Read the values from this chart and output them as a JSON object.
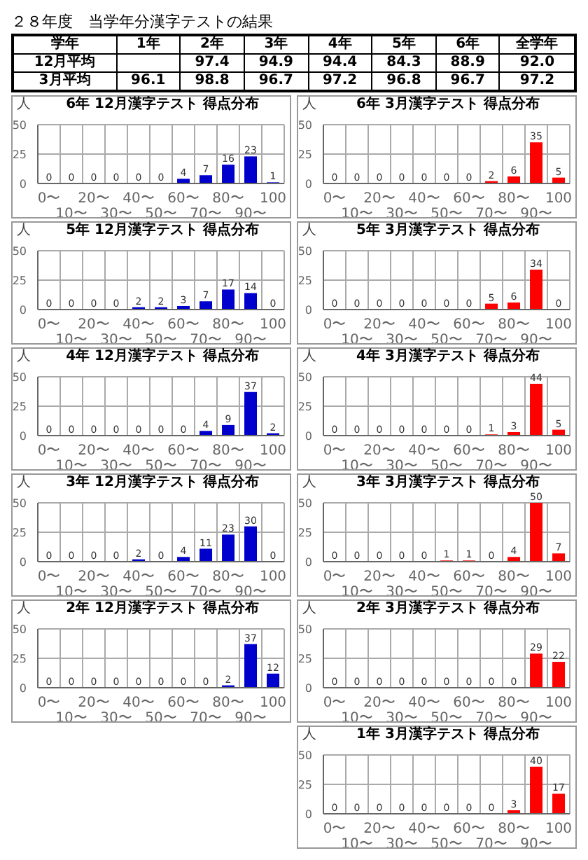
{
  "chart_data": [
    {
      "type": "heatmap",
      "title": "２８年度　当学年分漢字テストの結果",
      "xlabel": "学年",
      "categories": [
        "1年",
        "2年",
        "3年",
        "4年",
        "5年",
        "6年",
        "全学年"
      ],
      "y_categories": [
        "12月平均",
        "3月平均"
      ],
      "cells": [
        [
          null,
          97.4,
          94.9,
          94.4,
          84.3,
          88.9,
          92.0
        ],
        [
          96.1,
          98.8,
          96.7,
          97.2,
          96.8,
          96.7,
          97.2
        ]
      ],
      "cell_labels": [
        [
          null,
          "97.4",
          "94.9",
          "94.4",
          "84.3",
          "88.9",
          "92.0"
        ],
        [
          "96.1",
          "98.8",
          "96.7",
          "97.2",
          "96.8",
          "96.7",
          "97.2"
        ]
      ]
    },
    {
      "type": "bar",
      "title": "6年 12月漢字テスト 得点分布",
      "ylabel": "人",
      "categories": [
        "0〜",
        "10〜",
        "20〜",
        "30〜",
        "40〜",
        "50〜",
        "60〜",
        "70〜",
        "80〜",
        "90〜",
        "100"
      ],
      "values": [
        0,
        0,
        0,
        0,
        0,
        0,
        4,
        7,
        16,
        23,
        1
      ],
      "color": "#0000cc",
      "ylim": [
        0,
        50
      ],
      "yticks": [
        0,
        25,
        50
      ],
      "grid": true,
      "data_labels": true
    },
    {
      "type": "bar",
      "title": "5年 12月漢字テスト 得点分布",
      "ylabel": "人",
      "categories": [
        "0〜",
        "10〜",
        "20〜",
        "30〜",
        "40〜",
        "50〜",
        "60〜",
        "70〜",
        "80〜",
        "90〜",
        "100"
      ],
      "values": [
        0,
        0,
        0,
        0,
        2,
        2,
        3,
        7,
        17,
        14,
        0
      ],
      "color": "#0000cc",
      "ylim": [
        0,
        50
      ],
      "yticks": [
        0,
        25,
        50
      ],
      "grid": true,
      "data_labels": true
    },
    {
      "type": "bar",
      "title": "4年 12月漢字テスト 得点分布",
      "ylabel": "人",
      "categories": [
        "0〜",
        "10〜",
        "20〜",
        "30〜",
        "40〜",
        "50〜",
        "60〜",
        "70〜",
        "80〜",
        "90〜",
        "100"
      ],
      "values": [
        0,
        0,
        0,
        0,
        0,
        0,
        0,
        4,
        9,
        37,
        2
      ],
      "color": "#0000cc",
      "ylim": [
        0,
        50
      ],
      "yticks": [
        0,
        25,
        50
      ],
      "grid": true,
      "data_labels": true
    },
    {
      "type": "bar",
      "title": "3年 12月漢字テスト 得点分布",
      "ylabel": "人",
      "categories": [
        "0〜",
        "10〜",
        "20〜",
        "30〜",
        "40〜",
        "50〜",
        "60〜",
        "70〜",
        "80〜",
        "90〜",
        "100"
      ],
      "values": [
        0,
        0,
        0,
        0,
        2,
        0,
        4,
        11,
        23,
        30,
        0
      ],
      "color": "#0000cc",
      "ylim": [
        0,
        50
      ],
      "yticks": [
        0,
        25,
        50
      ],
      "grid": true,
      "data_labels": true
    },
    {
      "type": "bar",
      "title": "2年 12月漢字テスト 得点分布",
      "ylabel": "人",
      "categories": [
        "0〜",
        "10〜",
        "20〜",
        "30〜",
        "40〜",
        "50〜",
        "60〜",
        "70〜",
        "80〜",
        "90〜",
        "100"
      ],
      "values": [
        0,
        0,
        0,
        0,
        0,
        0,
        0,
        0,
        2,
        37,
        12
      ],
      "color": "#0000cc",
      "ylim": [
        0,
        50
      ],
      "yticks": [
        0,
        25,
        50
      ],
      "grid": true,
      "data_labels": true
    },
    {
      "type": "bar",
      "title": "6年 3月漢字テスト 得点分布",
      "ylabel": "人",
      "categories": [
        "0〜",
        "10〜",
        "20〜",
        "30〜",
        "40〜",
        "50〜",
        "60〜",
        "70〜",
        "80〜",
        "90〜",
        "100"
      ],
      "values": [
        0,
        0,
        0,
        0,
        0,
        0,
        0,
        2,
        6,
        35,
        5
      ],
      "color": "#ff0000",
      "ylim": [
        0,
        50
      ],
      "yticks": [
        0,
        25,
        50
      ],
      "grid": true,
      "data_labels": true
    },
    {
      "type": "bar",
      "title": "5年 3月漢字テスト 得点分布",
      "ylabel": "人",
      "categories": [
        "0〜",
        "10〜",
        "20〜",
        "30〜",
        "40〜",
        "50〜",
        "60〜",
        "70〜",
        "80〜",
        "90〜",
        "100"
      ],
      "values": [
        0,
        0,
        0,
        0,
        0,
        0,
        0,
        5,
        6,
        34,
        0
      ],
      "color": "#ff0000",
      "ylim": [
        0,
        50
      ],
      "yticks": [
        0,
        25,
        50
      ],
      "grid": true,
      "data_labels": true
    },
    {
      "type": "bar",
      "title": "4年 3月漢字テスト 得点分布",
      "ylabel": "人",
      "categories": [
        "0〜",
        "10〜",
        "20〜",
        "30〜",
        "40〜",
        "50〜",
        "60〜",
        "70〜",
        "80〜",
        "90〜",
        "100"
      ],
      "values": [
        0,
        0,
        0,
        0,
        0,
        0,
        0,
        1,
        3,
        44,
        5
      ],
      "color": "#ff0000",
      "ylim": [
        0,
        50
      ],
      "yticks": [
        0,
        25,
        50
      ],
      "grid": true,
      "data_labels": true
    },
    {
      "type": "bar",
      "title": "3年 3月漢字テスト 得点分布",
      "ylabel": "人",
      "categories": [
        "0〜",
        "10〜",
        "20〜",
        "30〜",
        "40〜",
        "50〜",
        "60〜",
        "70〜",
        "80〜",
        "90〜",
        "100"
      ],
      "values": [
        0,
        0,
        0,
        0,
        0,
        1,
        1,
        0,
        4,
        50,
        7
      ],
      "color": "#ff0000",
      "ylim": [
        0,
        50
      ],
      "yticks": [
        0,
        25,
        50
      ],
      "grid": true,
      "data_labels": true
    },
    {
      "type": "bar",
      "title": "2年 3月漢字テスト 得点分布",
      "ylabel": "人",
      "categories": [
        "0〜",
        "10〜",
        "20〜",
        "30〜",
        "40〜",
        "50〜",
        "60〜",
        "70〜",
        "80〜",
        "90〜",
        "100"
      ],
      "values": [
        0,
        0,
        0,
        0,
        0,
        0,
        0,
        0,
        0,
        29,
        22
      ],
      "color": "#ff0000",
      "ylim": [
        0,
        50
      ],
      "yticks": [
        0,
        25,
        50
      ],
      "grid": true,
      "data_labels": true
    },
    {
      "type": "bar",
      "title": "1年 3月漢字テスト 得点分布",
      "ylabel": "人",
      "categories": [
        "0〜",
        "10〜",
        "20〜",
        "30〜",
        "40〜",
        "50〜",
        "60〜",
        "70〜",
        "80〜",
        "90〜",
        "100"
      ],
      "values": [
        0,
        0,
        0,
        0,
        0,
        0,
        0,
        0,
        3,
        40,
        17
      ],
      "color": "#ff0000",
      "ylim": [
        0,
        50
      ],
      "yticks": [
        0,
        25,
        50
      ],
      "grid": true,
      "data_labels": true
    }
  ]
}
